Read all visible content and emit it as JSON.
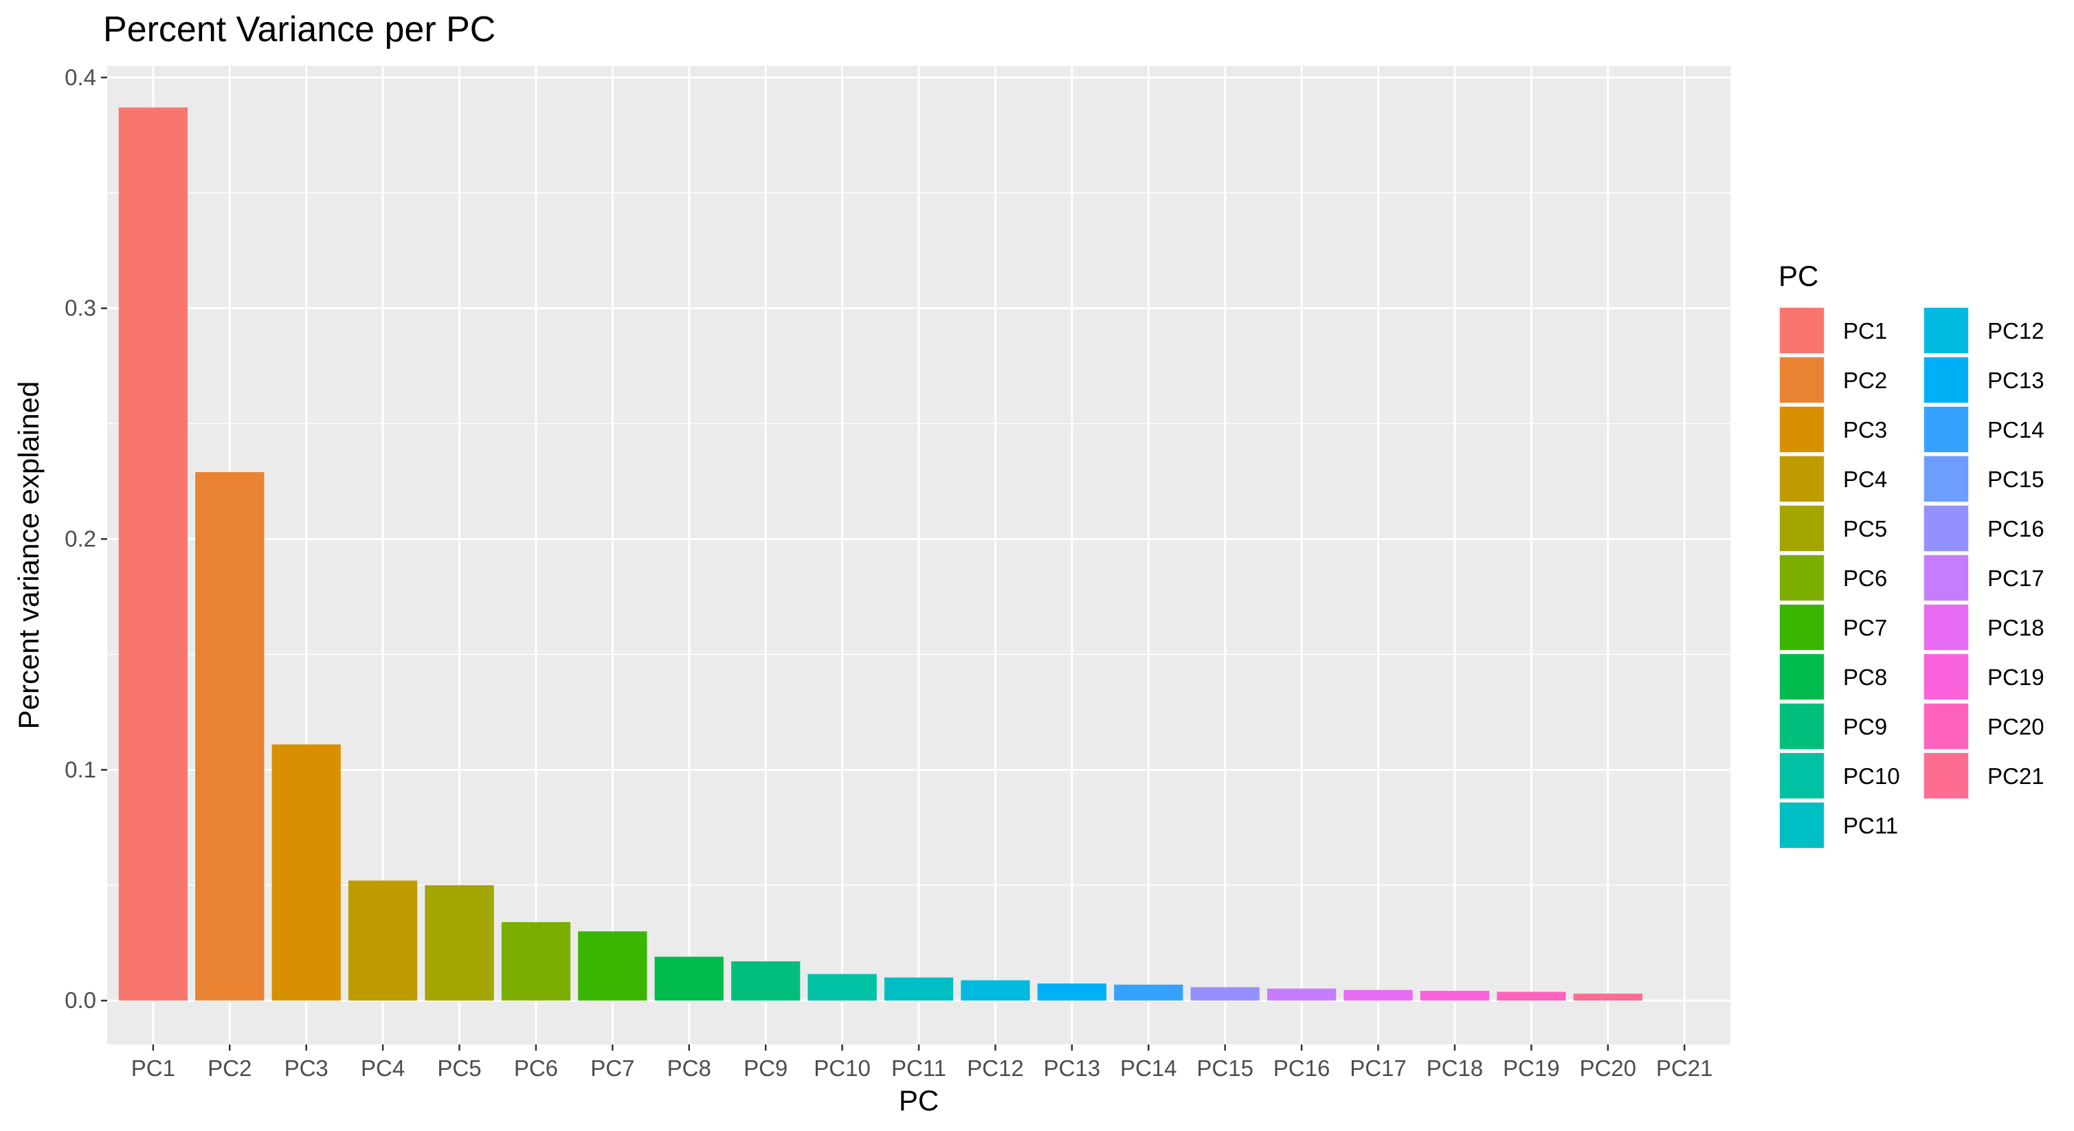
{
  "chart_data": {
    "type": "bar",
    "title": "Percent Variance per PC",
    "xlabel": "PC",
    "ylabel": "Percent variance explained",
    "categories": [
      "PC1",
      "PC2",
      "PC3",
      "PC4",
      "PC5",
      "PC6",
      "PC7",
      "PC8",
      "PC9",
      "PC10",
      "PC11",
      "PC12",
      "PC13",
      "PC14",
      "PC15",
      "PC16",
      "PC17",
      "PC18",
      "PC19",
      "PC20",
      "PC21"
    ],
    "values": [
      0.387,
      0.229,
      0.111,
      0.052,
      0.05,
      0.034,
      0.03,
      0.019,
      0.017,
      0.0115,
      0.01,
      0.0088,
      0.0074,
      0.0069,
      0.0058,
      0.0052,
      0.0046,
      0.0042,
      0.0038,
      0.003,
      0.0
    ],
    "colors": [
      "#F8766D",
      "#EA8331",
      "#D89000",
      "#C09B00",
      "#A3A500",
      "#7CAE00",
      "#39B600",
      "#00BB4E",
      "#00BF7D",
      "#00C1A3",
      "#00BFC4",
      "#00BAE0",
      "#00B0F6",
      "#35A2FF",
      "#9590FF",
      "#C77CFF",
      "#E76BF3",
      "#FA62DB",
      "#FF62BC",
      "#FF6C91",
      "#FF6C91"
    ],
    "legend_colors": [
      "#F8766D",
      "#EA8331",
      "#D89000",
      "#C09B00",
      "#A3A500",
      "#7CAE00",
      "#39B600",
      "#00BB4E",
      "#00BF7D",
      "#00C1A3",
      "#00BFC4",
      "#00BAE0",
      "#00B0F6",
      "#35A2FF",
      "#6D9EFF",
      "#9590FF",
      "#C77CFF",
      "#E76BF3",
      "#FA62DB",
      "#FF62BC",
      "#FF6C91"
    ],
    "yticks": [
      "0.0",
      "0.1",
      "0.2",
      "0.3",
      "0.4"
    ],
    "ytick_values": [
      0,
      0.1,
      0.2,
      0.3,
      0.4
    ],
    "ylim": [
      -0.019,
      0.405
    ],
    "legend": {
      "title": "PC",
      "placement": "right",
      "columns": 2
    },
    "grid": true,
    "panel_background": "#EBEBEB",
    "grid_color": "#FFFFFF"
  }
}
